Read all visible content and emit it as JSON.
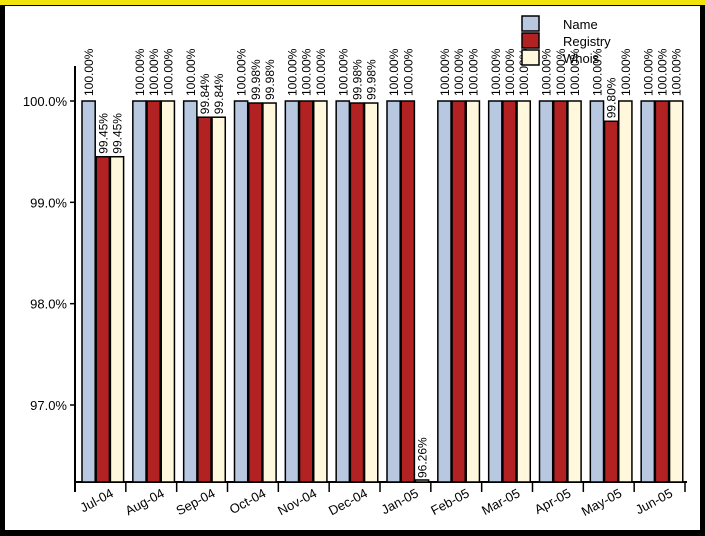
{
  "chart_data": {
    "type": "bar",
    "categories": [
      "Jul-04",
      "Aug-04",
      "Sep-04",
      "Oct-04",
      "Nov-04",
      "Dec-04",
      "Jan-05",
      "Feb-05",
      "Mar-05",
      "Apr-05",
      "May-05",
      "Jun-05"
    ],
    "series": [
      {
        "name": "Name",
        "color": "#b8c8e0",
        "values": [
          100.0,
          100.0,
          100.0,
          100.0,
          100.0,
          100.0,
          100.0,
          100.0,
          100.0,
          100.0,
          100.0,
          100.0
        ],
        "labels": [
          "100.00%",
          "100.00%",
          "100.00%",
          "100.00%",
          "100.00%",
          "100.00%",
          "100.00%",
          "100.00%",
          "100.00%",
          "100.00%",
          "100.00%",
          "100.00%"
        ]
      },
      {
        "name": "Registry",
        "color": "#b22222",
        "values": [
          99.45,
          100.0,
          99.84,
          99.98,
          100.0,
          99.98,
          100.0,
          100.0,
          100.0,
          100.0,
          99.8,
          100.0
        ],
        "labels": [
          "99.45%",
          "100.00%",
          "99.84%",
          "99.98%",
          "100.00%",
          "99.98%",
          "100.00%",
          "100.00%",
          "100.00%",
          "100.00%",
          "99.80%",
          "100.00%"
        ]
      },
      {
        "name": "Whois",
        "color": "#fff8dc",
        "values": [
          99.45,
          100.0,
          99.84,
          99.98,
          100.0,
          99.98,
          96.26,
          100.0,
          100.0,
          100.0,
          100.0,
          100.0
        ],
        "labels": [
          "99.45%",
          "100.00%",
          "99.84%",
          "99.98%",
          "100.00%",
          "99.98%",
          "96.26%",
          "100.00%",
          "100.00%",
          "100.00%",
          "100.00%",
          "100.00%"
        ]
      }
    ],
    "yticks": [
      "97.0%",
      "98.0%",
      "99.0%",
      "100.0%"
    ],
    "ytick_values": [
      97.0,
      98.0,
      99.0,
      100.0
    ],
    "ylim": [
      96.3,
      100.0
    ],
    "legend_position": "top-right",
    "grid": false
  }
}
